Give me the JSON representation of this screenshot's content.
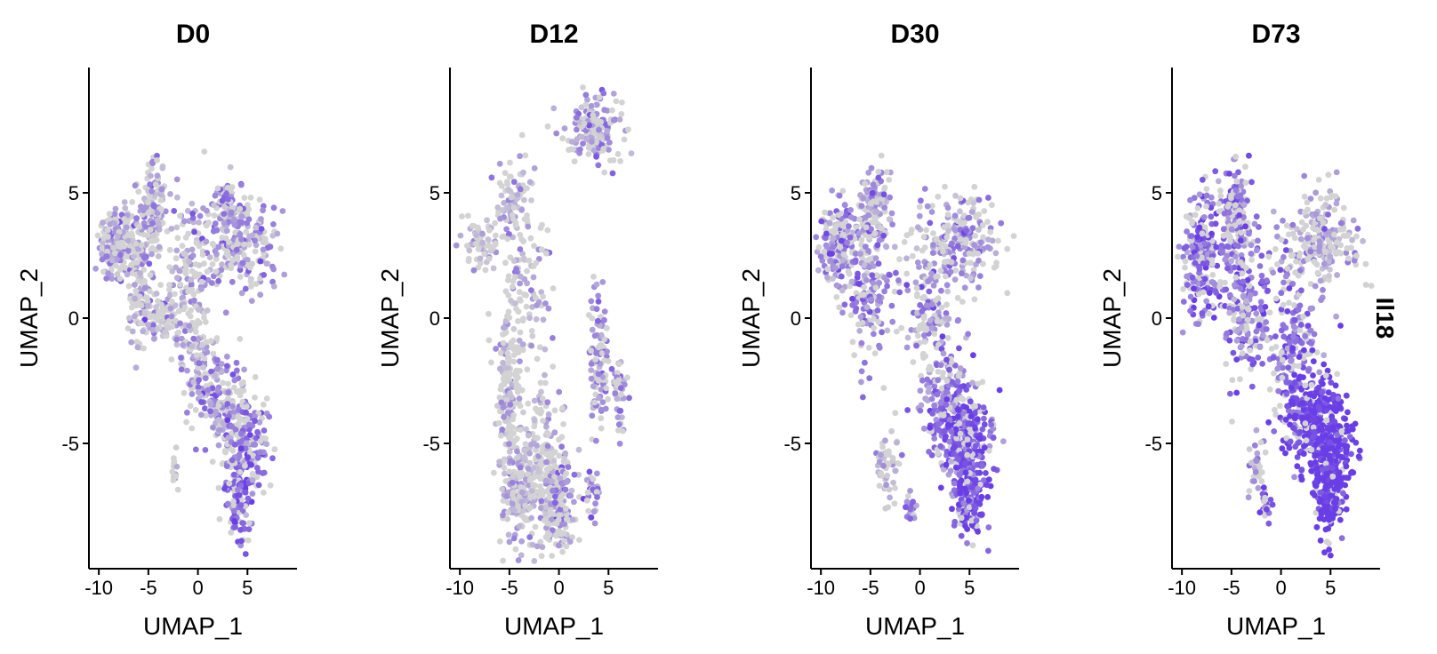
{
  "feature_label": "Il18",
  "colors": {
    "low": "#d3d3d3",
    "high": "#6a3ee6",
    "axis": "#000000"
  },
  "chart_data": [
    {
      "type": "scatter",
      "title": "D0",
      "xlabel": "UMAP_1",
      "ylabel": "UMAP_2",
      "xlim": [
        -11,
        10
      ],
      "ylim": [
        -10,
        10
      ],
      "xticks": [
        -10,
        -5,
        0,
        5
      ],
      "yticks": [
        -5,
        0,
        5
      ],
      "grid": false,
      "density": 1.0,
      "expression_bias": 0.0,
      "regions": [
        {
          "x": -8,
          "y": 3,
          "sx": 1.0,
          "sy": 0.7,
          "w": 0.12,
          "expr": 0.35
        },
        {
          "x": -4.5,
          "y": 4.2,
          "sx": 0.8,
          "sy": 1.0,
          "w": 0.1,
          "expr": 0.3
        },
        {
          "x": -6,
          "y": 1.5,
          "sx": 0.6,
          "sy": 1.3,
          "w": 0.06,
          "expr": 0.3
        },
        {
          "x": -4,
          "y": 0,
          "sx": 1.3,
          "sy": 0.5,
          "w": 0.06,
          "expr": 0.2
        },
        {
          "x": -1,
          "y": 1.5,
          "sx": 1.0,
          "sy": 1.5,
          "w": 0.07,
          "expr": 0.25
        },
        {
          "x": 4,
          "y": 3,
          "sx": 2.2,
          "sy": 1.0,
          "w": 0.16,
          "expr": 0.45
        },
        {
          "x": 3,
          "y": 4.5,
          "sx": 0.6,
          "sy": 0.4,
          "w": 0.03,
          "expr": 0.45
        },
        {
          "x": 0,
          "y": -1.5,
          "sx": 1.0,
          "sy": 1.0,
          "w": 0.06,
          "expr": 0.3
        },
        {
          "x": 2.5,
          "y": -3.5,
          "sx": 1.2,
          "sy": 1.1,
          "w": 0.1,
          "expr": 0.45
        },
        {
          "x": 5,
          "y": -5,
          "sx": 1.3,
          "sy": 1.0,
          "w": 0.1,
          "expr": 0.6
        },
        {
          "x": 4,
          "y": -7,
          "sx": 0.7,
          "sy": 0.9,
          "w": 0.08,
          "expr": 0.75
        },
        {
          "x": -2.3,
          "y": -6,
          "sx": 0.15,
          "sy": 0.3,
          "w": 0.01,
          "expr": 0.1
        }
      ]
    },
    {
      "type": "scatter",
      "title": "D12",
      "xlabel": "UMAP_1",
      "ylabel": "UMAP_2",
      "xlim": [
        -11,
        10
      ],
      "ylim": [
        -10,
        10
      ],
      "xticks": [
        -10,
        -5,
        0,
        5
      ],
      "yticks": [
        -5,
        0,
        5
      ],
      "grid": false,
      "density": 0.85,
      "expression_bias": -0.05,
      "regions": [
        {
          "x": 3.5,
          "y": 7.5,
          "sx": 1.5,
          "sy": 0.7,
          "w": 0.1,
          "expr": 0.45
        },
        {
          "x": -4.5,
          "y": 4.5,
          "sx": 0.8,
          "sy": 1.2,
          "w": 0.06,
          "expr": 0.25
        },
        {
          "x": -8,
          "y": 3,
          "sx": 1.0,
          "sy": 0.5,
          "w": 0.04,
          "expr": 0.2
        },
        {
          "x": -3,
          "y": 1,
          "sx": 1.2,
          "sy": 1.8,
          "w": 0.05,
          "expr": 0.25
        },
        {
          "x": -5,
          "y": -3,
          "sx": 0.6,
          "sy": 2.0,
          "w": 0.12,
          "expr": 0.2
        },
        {
          "x": -4,
          "y": -7,
          "sx": 0.8,
          "sy": 1.2,
          "w": 0.1,
          "expr": 0.3
        },
        {
          "x": -1.5,
          "y": -6,
          "sx": 1.0,
          "sy": 1.5,
          "w": 0.1,
          "expr": 0.25
        },
        {
          "x": 0,
          "y": -7.5,
          "sx": 0.8,
          "sy": 1.0,
          "w": 0.1,
          "expr": 0.45
        },
        {
          "x": 4,
          "y": -1.5,
          "sx": 0.5,
          "sy": 1.5,
          "w": 0.06,
          "expr": 0.5
        },
        {
          "x": 6,
          "y": -3,
          "sx": 0.4,
          "sy": 0.8,
          "w": 0.03,
          "expr": 0.45
        },
        {
          "x": 3.3,
          "y": -7,
          "sx": 0.4,
          "sy": 0.6,
          "w": 0.02,
          "expr": 0.6
        }
      ]
    },
    {
      "type": "scatter",
      "title": "D30",
      "xlabel": "UMAP_1",
      "ylabel": "UMAP_2",
      "xlim": [
        -11,
        10
      ],
      "ylim": [
        -10,
        10
      ],
      "xticks": [
        -10,
        -5,
        0,
        5
      ],
      "yticks": [
        -5,
        0,
        5
      ],
      "grid": false,
      "density": 1.0,
      "expression_bias": 0.1,
      "regions": [
        {
          "x": -8,
          "y": 3,
          "sx": 1.0,
          "sy": 0.8,
          "w": 0.1,
          "expr": 0.45
        },
        {
          "x": -4.5,
          "y": 4.3,
          "sx": 0.8,
          "sy": 0.9,
          "w": 0.08,
          "expr": 0.3
        },
        {
          "x": -5,
          "y": 1,
          "sx": 1.3,
          "sy": 1.3,
          "w": 0.08,
          "expr": 0.45
        },
        {
          "x": 4,
          "y": 3,
          "sx": 2.0,
          "sy": 1.0,
          "w": 0.12,
          "expr": 0.3
        },
        {
          "x": 1,
          "y": 0,
          "sx": 1.2,
          "sy": 1.5,
          "w": 0.08,
          "expr": 0.35
        },
        {
          "x": 3,
          "y": -3.5,
          "sx": 1.3,
          "sy": 1.2,
          "w": 0.12,
          "expr": 0.55
        },
        {
          "x": 5,
          "y": -5,
          "sx": 1.3,
          "sy": 1.0,
          "w": 0.12,
          "expr": 0.75
        },
        {
          "x": 5,
          "y": -7,
          "sx": 0.7,
          "sy": 0.8,
          "w": 0.1,
          "expr": 0.85
        },
        {
          "x": -3.3,
          "y": -6,
          "sx": 0.5,
          "sy": 0.8,
          "w": 0.03,
          "expr": 0.15
        },
        {
          "x": -1,
          "y": -7.5,
          "sx": 0.3,
          "sy": 0.3,
          "w": 0.01,
          "expr": 0.4
        }
      ]
    },
    {
      "type": "scatter",
      "title": "D73",
      "xlabel": "UMAP_1",
      "ylabel": "UMAP_2",
      "xlim": [
        -11,
        10
      ],
      "ylim": [
        -10,
        10
      ],
      "xticks": [
        -10,
        -5,
        0,
        5
      ],
      "yticks": [
        -5,
        0,
        5
      ],
      "grid": false,
      "density": 1.1,
      "expression_bias": 0.15,
      "regions": [
        {
          "x": -8,
          "y": 2.5,
          "sx": 1.0,
          "sy": 1.2,
          "w": 0.12,
          "expr": 0.55
        },
        {
          "x": -4.5,
          "y": 4.3,
          "sx": 0.8,
          "sy": 1.0,
          "w": 0.08,
          "expr": 0.45
        },
        {
          "x": -3.5,
          "y": 0.5,
          "sx": 1.2,
          "sy": 1.5,
          "w": 0.1,
          "expr": 0.5
        },
        {
          "x": 4,
          "y": 3,
          "sx": 2.0,
          "sy": 1.0,
          "w": 0.12,
          "expr": 0.2
        },
        {
          "x": 1,
          "y": -1,
          "sx": 1.3,
          "sy": 1.5,
          "w": 0.1,
          "expr": 0.5
        },
        {
          "x": 3,
          "y": -4,
          "sx": 1.5,
          "sy": 1.0,
          "w": 0.12,
          "expr": 0.85
        },
        {
          "x": 5,
          "y": -5,
          "sx": 1.3,
          "sy": 1.0,
          "w": 0.12,
          "expr": 0.95
        },
        {
          "x": 5,
          "y": -7,
          "sx": 0.7,
          "sy": 0.8,
          "w": 0.1,
          "expr": 0.95
        },
        {
          "x": -2.5,
          "y": -6,
          "sx": 0.4,
          "sy": 0.6,
          "w": 0.02,
          "expr": 0.15
        },
        {
          "x": -1.5,
          "y": -7.5,
          "sx": 0.3,
          "sy": 0.3,
          "w": 0.01,
          "expr": 0.7
        }
      ]
    }
  ]
}
